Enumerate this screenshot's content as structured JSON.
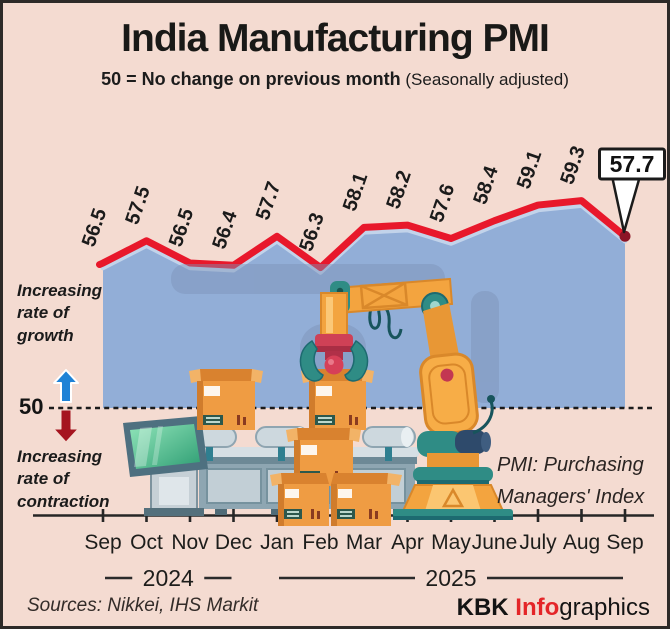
{
  "header": {
    "title": "India Manufacturing PMI",
    "subtitle_bold": "50 = No change on previous month",
    "subtitle_normal": " (Seasonally adjusted)"
  },
  "chart_data": {
    "type": "area",
    "title": "India Manufacturing PMI",
    "series_name": "Manufacturing PMI",
    "categories": [
      "Sep",
      "Oct",
      "Nov",
      "Dec",
      "Jan",
      "Feb",
      "Mar",
      "Apr",
      "May",
      "June",
      "July",
      "Aug",
      "Sep"
    ],
    "values": [
      56.5,
      57.5,
      56.5,
      56.4,
      57.7,
      56.3,
      58.1,
      58.2,
      57.6,
      58.4,
      59.1,
      59.3,
      57.7
    ],
    "baseline": 50,
    "baseline_label": "50",
    "callout_value": "57.7",
    "year_groups": [
      {
        "label": "2024",
        "start": 0,
        "end": 3
      },
      {
        "label": "2025",
        "start": 4,
        "end": 12
      }
    ],
    "xlabel": "",
    "ylabel": "",
    "ylim": [
      50,
      60
    ],
    "grid": false,
    "legend_position": "none"
  },
  "annotations": {
    "growth": "Increasing\nrate of\ngrowth",
    "contraction": "Increasing\nrate of\ncontraction",
    "pmi_note": "PMI: Purchasing\nManagers' Index"
  },
  "icons": {
    "up_arrow": "arrow-up",
    "down_arrow": "arrow-down"
  },
  "footer": {
    "sources": "Sources: Nikkei, IHS Markit",
    "logo_part1": "KBK ",
    "logo_part2": "Info",
    "logo_part3": "graphics"
  },
  "colors": {
    "background": "#f4dbd1",
    "area_fill": "#92aed7",
    "area_top_stroke": "#c2d3ea",
    "line": "#e8182b",
    "end_dot": "#8c1526",
    "text": "#1c1c1c",
    "up_arrow": "#1e82d6",
    "down_arrow": "#a5141f",
    "logo_accent": "#e42528"
  }
}
